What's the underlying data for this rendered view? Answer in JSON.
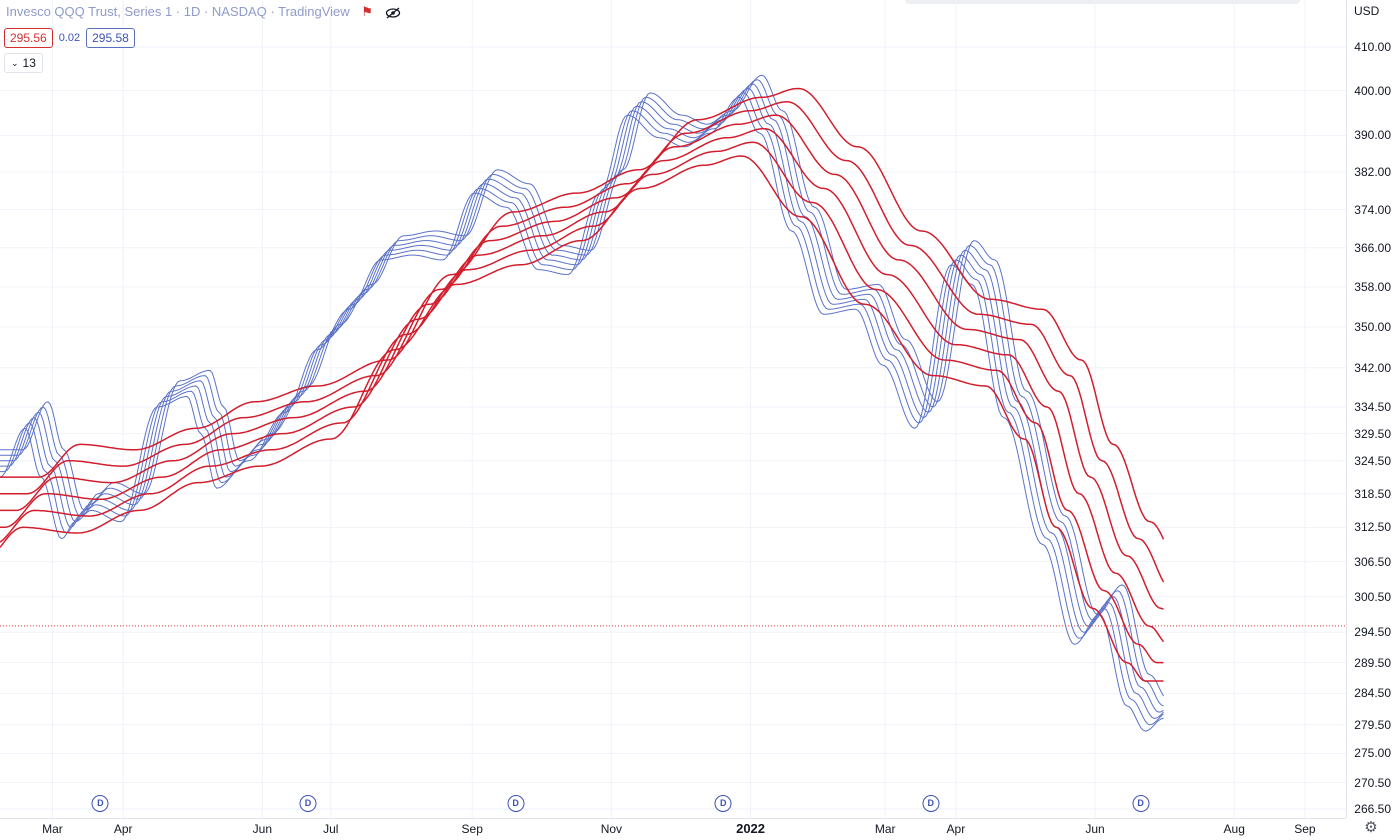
{
  "legend": {
    "title": "Invesco QQQ Trust, Series 1 · 1D · NASDAQ · TradingView",
    "value_red": "295.56",
    "value_diff": "0.02",
    "value_blue": "295.58",
    "collapse_count": "13",
    "flag_icon": "flag-icon",
    "eye_icon": "eye-off-icon"
  },
  "currency": "USD",
  "settings_icon": "gear-icon",
  "dividend_marker": "D",
  "colors": {
    "fast": "#5b72c8",
    "slow": "#d21e2d",
    "last_price_line": "#e53935"
  },
  "chart_data": {
    "type": "line",
    "title": "Invesco QQQ Trust, Series 1 · 1D · NASDAQ · TradingView",
    "ylabel": "USD",
    "scale": "log",
    "ylim": [
      266.5,
      410.0
    ],
    "y_ticks": [
      "410.00",
      "400.00",
      "390.00",
      "382.00",
      "374.00",
      "366.00",
      "358.00",
      "350.00",
      "342.00",
      "334.50",
      "329.50",
      "324.50",
      "318.50",
      "312.50",
      "306.50",
      "300.50",
      "294.50",
      "289.50",
      "284.50",
      "279.50",
      "275.00",
      "270.50",
      "266.50"
    ],
    "x_ticks": [
      "Mar",
      "Apr",
      "Jun",
      "Jul",
      "Sep",
      "Nov",
      "2022",
      "Mar",
      "Apr",
      "Jun",
      "Aug",
      "Sep"
    ],
    "x_range": [
      "2021-02-06",
      "2022-09-19"
    ],
    "last_price": 295.56,
    "dividend_dates": [
      "2021-03-22",
      "2021-06-21",
      "2021-09-20",
      "2021-12-20",
      "2022-03-21",
      "2022-06-21"
    ],
    "series_groups": [
      {
        "color": "#5b72c8",
        "count": 6,
        "base": [
          [
            "2021-02-06",
            324
          ],
          [
            "2021-02-17",
            333
          ],
          [
            "2021-02-24",
            324
          ],
          [
            "2021-03-05",
            313
          ],
          [
            "2021-03-11",
            316
          ],
          [
            "2021-03-18",
            318
          ],
          [
            "2021-03-31",
            316
          ],
          [
            "2021-04-16",
            337
          ],
          [
            "2021-04-29",
            339
          ],
          [
            "2021-05-05",
            332
          ],
          [
            "2021-05-12",
            322
          ],
          [
            "2021-05-26",
            327
          ],
          [
            "2021-06-11",
            336
          ],
          [
            "2021-06-25",
            348
          ],
          [
            "2021-07-09",
            356
          ],
          [
            "2021-07-23",
            366
          ],
          [
            "2021-08-06",
            367
          ],
          [
            "2021-08-19",
            366
          ],
          [
            "2021-09-02",
            380
          ],
          [
            "2021-09-16",
            377
          ],
          [
            "2021-09-30",
            364
          ],
          [
            "2021-10-13",
            363
          ],
          [
            "2021-10-27",
            380
          ],
          [
            "2021-11-08",
            397
          ],
          [
            "2021-11-22",
            392
          ],
          [
            "2021-12-03",
            390
          ],
          [
            "2021-12-14",
            393
          ],
          [
            "2021-12-27",
            401
          ],
          [
            "2022-01-05",
            393
          ],
          [
            "2022-01-19",
            372
          ],
          [
            "2022-02-02",
            355
          ],
          [
            "2022-02-16",
            356
          ],
          [
            "2022-02-28",
            345
          ],
          [
            "2022-03-14",
            333
          ],
          [
            "2022-03-30",
            365
          ],
          [
            "2022-04-08",
            361
          ],
          [
            "2022-04-22",
            335
          ],
          [
            "2022-05-09",
            312
          ],
          [
            "2022-05-23",
            295
          ],
          [
            "2022-06-03",
            300
          ],
          [
            "2022-06-15",
            285
          ],
          [
            "2022-06-23",
            281
          ],
          [
            "2022-07-01",
            283
          ]
        ],
        "offsets": [
          -2.5,
          -1.5,
          -0.5,
          0.5,
          1.5,
          2.5
        ],
        "lags_days": [
          0,
          2,
          4,
          6,
          8,
          10
        ]
      },
      {
        "color": "#d21e2d",
        "count": 6,
        "base": [
          [
            "2021-02-06",
            314
          ],
          [
            "2021-02-24",
            320
          ],
          [
            "2021-03-20",
            319
          ],
          [
            "2021-04-16",
            323
          ],
          [
            "2021-05-12",
            328
          ],
          [
            "2021-06-08",
            331
          ],
          [
            "2021-07-09",
            336
          ],
          [
            "2021-08-06",
            353
          ],
          [
            "2021-09-02",
            366
          ],
          [
            "2021-09-30",
            370
          ],
          [
            "2021-10-27",
            375
          ],
          [
            "2021-11-22",
            386
          ],
          [
            "2021-12-20",
            391
          ],
          [
            "2022-01-05",
            393
          ],
          [
            "2022-01-31",
            380
          ],
          [
            "2022-02-28",
            362
          ],
          [
            "2022-03-30",
            348
          ],
          [
            "2022-04-22",
            346
          ],
          [
            "2022-05-09",
            336
          ],
          [
            "2022-05-23",
            320
          ],
          [
            "2022-06-08",
            306
          ],
          [
            "2022-06-23",
            297
          ],
          [
            "2022-07-01",
            294
          ]
        ],
        "offsets": [
          0,
          3.0,
          6.0,
          9.0,
          12.0,
          15.0
        ],
        "lags_days": [
          -8,
          -3,
          2,
          7,
          12,
          17
        ]
      }
    ]
  }
}
